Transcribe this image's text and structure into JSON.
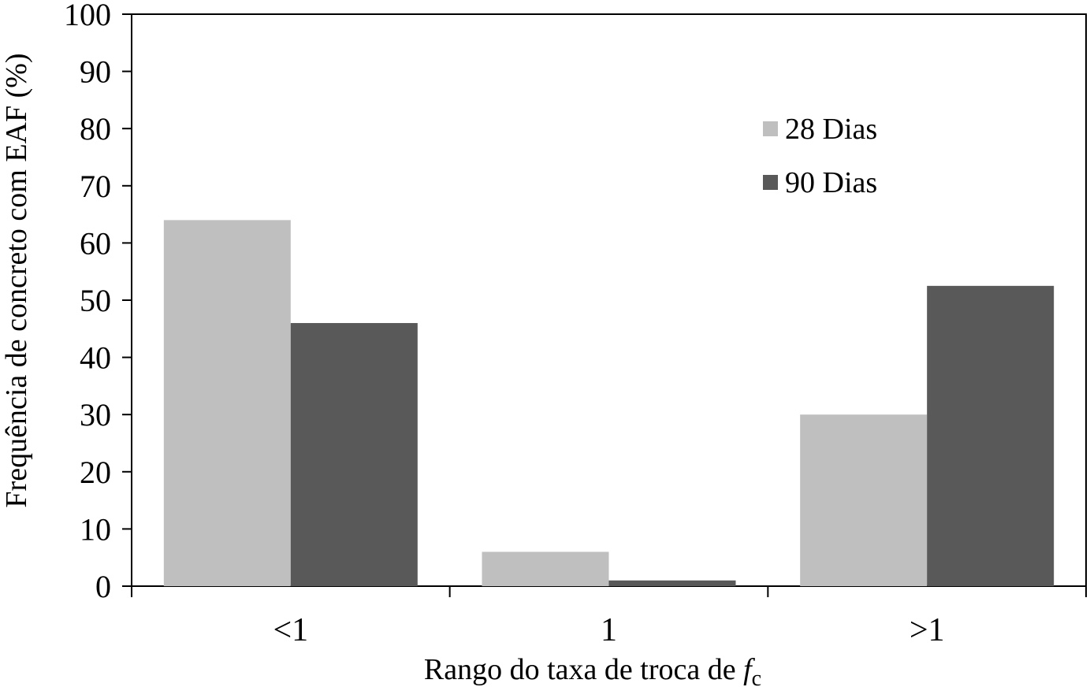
{
  "chart_data": {
    "type": "bar",
    "title": "",
    "xlabel": "Rango do taxa de troca de ",
    "xlabel_italic": "f",
    "xlabel_subscript": "c",
    "ylabel": "Frequência de concreto com EAF (%)",
    "categories": [
      "<1",
      "1",
      ">1"
    ],
    "series": [
      {
        "name": "28 Dias",
        "values": [
          64,
          6,
          30
        ],
        "color": "#bfbfbf"
      },
      {
        "name": "90 Dias",
        "values": [
          46,
          1,
          52.5
        ],
        "color": "#595959"
      }
    ],
    "ylim": [
      0,
      100
    ],
    "yticks": [
      0,
      10,
      20,
      30,
      40,
      50,
      60,
      70,
      80,
      90,
      100
    ],
    "grid": false,
    "legend_position": "top-right"
  }
}
